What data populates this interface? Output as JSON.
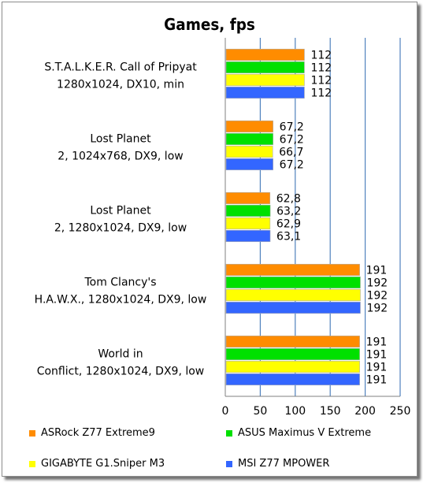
{
  "chart_data": {
    "type": "bar",
    "orientation": "horizontal",
    "title": "Games, fps",
    "xlim": [
      0,
      250
    ],
    "xticks": [
      "0",
      "50",
      "100",
      "150",
      "200",
      "250"
    ],
    "grid": "vertical",
    "legend_position": "bottom",
    "categories": [
      [
        "S.T.A.L.K.E.R. Call of Pripyat",
        "1280x1024, DX10, min"
      ],
      [
        "Lost Planet",
        "2, 1024x768, DX9, low"
      ],
      [
        "Lost Planet",
        "2, 1280x1024, DX9, low"
      ],
      [
        "Tom Clancy's",
        "H.A.W.X., 1280x1024, DX9, low"
      ],
      [
        "World in",
        "Conflict, 1280x1024, DX9, low"
      ]
    ],
    "series": [
      {
        "name": "ASRock Z77 Extreme9",
        "color": "#ff8c00",
        "values": [
          112,
          67.2,
          62.8,
          191,
          191
        ],
        "labels": [
          "112",
          "67,2",
          "62,8",
          "191",
          "191"
        ]
      },
      {
        "name": "ASUS Maximus V Extreme",
        "color": "#00e000",
        "values": [
          112,
          67.2,
          63.2,
          192,
          191
        ],
        "labels": [
          "112",
          "67,2",
          "63,2",
          "192",
          "191"
        ]
      },
      {
        "name": "GIGABYTE G1.Sniper M3",
        "color": "#ffff00",
        "values": [
          112,
          66.7,
          62.9,
          192,
          191
        ],
        "labels": [
          "112",
          "66,7",
          "62,9",
          "192",
          "191"
        ]
      },
      {
        "name": "MSI Z77 MPOWER",
        "color": "#3366ff",
        "values": [
          112,
          67.2,
          63.1,
          192,
          191
        ],
        "labels": [
          "112",
          "67,2",
          "63,1",
          "192",
          "191"
        ]
      }
    ]
  }
}
